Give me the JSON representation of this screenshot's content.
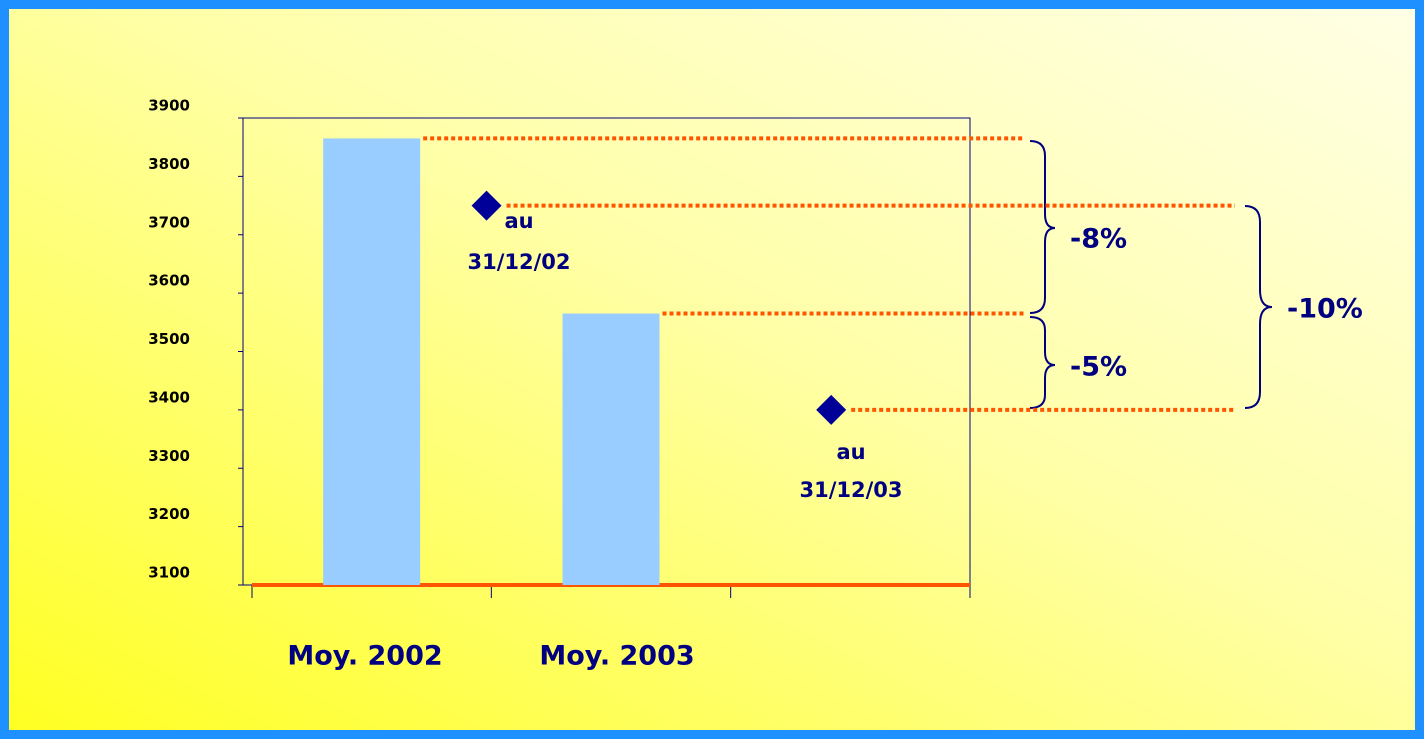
{
  "chart_data": {
    "type": "bar",
    "categories": [
      "Moy. 2002",
      "Moy. 2003",
      null
    ],
    "series": [
      {
        "type": "bar",
        "color": "#99ccff",
        "values": [
          3865,
          3565,
          null
        ]
      },
      {
        "type": "diamond",
        "color": "#000099",
        "values": [
          3750,
          null,
          3400
        ],
        "labels": [
          [
            "au",
            "31/12/02"
          ],
          null,
          [
            "au",
            "31/12/03"
          ]
        ]
      }
    ],
    "ylim": [
      3100,
      3900
    ],
    "yticks": [
      3100,
      3200,
      3300,
      3400,
      3500,
      3600,
      3700,
      3800,
      3900
    ],
    "reference_line_color": "#ff5500",
    "annotations": [
      "-8%",
      "-5%",
      "-10%"
    ]
  }
}
